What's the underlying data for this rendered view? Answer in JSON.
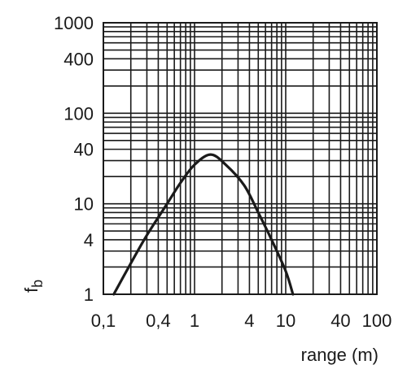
{
  "chart_data": {
    "type": "line",
    "title": "",
    "xlabel": "range (m)",
    "ylabel_main": "f",
    "ylabel_sub": "b",
    "xscale": "log",
    "yscale": "log",
    "xlim": [
      0.1,
      100
    ],
    "ylim": [
      1,
      1000
    ],
    "grid": true,
    "x_ticks": [
      {
        "value": 0.1,
        "label": "0,1"
      },
      {
        "value": 0.4,
        "label": "0,4"
      },
      {
        "value": 1,
        "label": "1"
      },
      {
        "value": 4,
        "label": "4"
      },
      {
        "value": 10,
        "label": "10"
      },
      {
        "value": 40,
        "label": "40"
      },
      {
        "value": 100,
        "label": "100"
      }
    ],
    "y_ticks": [
      {
        "value": 1,
        "label": "1"
      },
      {
        "value": 4,
        "label": "4"
      },
      {
        "value": 10,
        "label": "10"
      },
      {
        "value": 40,
        "label": "40"
      },
      {
        "value": 100,
        "label": "100"
      },
      {
        "value": 400,
        "label": "400"
      },
      {
        "value": 1000,
        "label": "1000"
      }
    ],
    "x_grid": [
      0.1,
      0.2,
      0.3,
      0.4,
      0.5,
      0.6,
      0.7,
      0.8,
      0.9,
      1,
      2,
      3,
      4,
      5,
      6,
      7,
      8,
      9,
      10,
      20,
      30,
      40,
      50,
      60,
      70,
      80,
      90,
      100
    ],
    "y_grid": [
      1,
      2,
      3,
      4,
      5,
      6,
      7,
      8,
      9,
      10,
      20,
      30,
      40,
      50,
      60,
      70,
      80,
      90,
      100,
      200,
      300,
      400,
      500,
      600,
      700,
      800,
      900,
      1000
    ],
    "series": [
      {
        "x": [
          0.13,
          0.2,
          0.3,
          0.5,
          0.7,
          1.0,
          1.5,
          2.2,
          3.5,
          5,
          7,
          10,
          12
        ],
        "y": [
          1.0,
          2.2,
          4.5,
          10,
          17,
          27,
          35,
          27,
          16,
          8,
          4,
          1.8,
          1.0
        ]
      }
    ]
  }
}
